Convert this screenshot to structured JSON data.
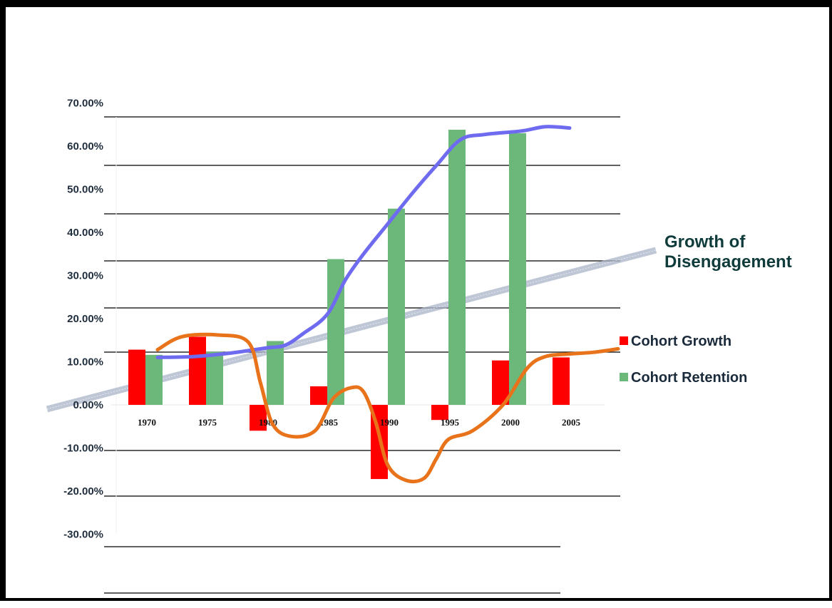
{
  "chart_data": {
    "type": "bar",
    "categories": [
      "1970",
      "1975",
      "1980",
      "1985",
      "1990",
      "1995",
      "2000",
      "2005"
    ],
    "series": [
      {
        "name": "Cohort Growth",
        "color": "#ff0000",
        "values": [
          12.8,
          15.8,
          -6.0,
          4.3,
          -17.2,
          -3.5,
          10.3,
          11.0
        ]
      },
      {
        "name": "Cohort Retention",
        "color": "#6cb87a",
        "values": [
          11.6,
          12.3,
          14.8,
          33.8,
          45.5,
          63.8,
          63.0,
          null
        ]
      }
    ],
    "ylim": [
      -30,
      70
    ],
    "yticks": [
      "70.00%",
      "60.00%",
      "50.00%",
      "40.00%",
      "30.00%",
      "20.00%",
      "10.00%",
      "0.00%",
      "-10.00%",
      "-20.00%",
      "-30.00%"
    ],
    "ytick_values": [
      70,
      60,
      50,
      40,
      30,
      20,
      10,
      0,
      -10,
      -20,
      -30
    ],
    "legend": [
      "Cohort Growth",
      "Cohort Retention"
    ],
    "legend_position": "right",
    "annotation": {
      "text_line1": "Growth of",
      "text_line2": "Disengagement",
      "trend_color": "#a9b4c8"
    },
    "hand_drawn_lines": [
      {
        "label": "retention-trace",
        "color": "#6f6bf0",
        "points": [
          [
            1971,
            11.0
          ],
          [
            1974,
            11.2
          ],
          [
            1977,
            12.0
          ],
          [
            1980,
            13.2
          ],
          [
            1981.5,
            13.8
          ],
          [
            1983,
            16.5
          ],
          [
            1985,
            21.0
          ],
          [
            1986.5,
            29.0
          ],
          [
            1988,
            35.0
          ],
          [
            1990,
            42.0
          ],
          [
            1992,
            49.0
          ],
          [
            1994,
            55.5
          ],
          [
            1996,
            61.5
          ],
          [
            1998,
            62.7
          ],
          [
            2001,
            63.5
          ],
          [
            2003,
            64.5
          ],
          [
            2005,
            64.2
          ]
        ]
      },
      {
        "label": "growth-trace",
        "color": "#e8731a",
        "points": [
          [
            1971,
            12.8
          ],
          [
            1973,
            15.8
          ],
          [
            1976,
            16.2
          ],
          [
            1978.5,
            14.5
          ],
          [
            1979.5,
            5.0
          ],
          [
            1980.5,
            -4.5
          ],
          [
            1982,
            -7.3
          ],
          [
            1984,
            -6.0
          ],
          [
            1985.5,
            1.5
          ],
          [
            1987,
            4.0
          ],
          [
            1988,
            3.0
          ],
          [
            1989,
            -4.0
          ],
          [
            1990,
            -14.0
          ],
          [
            1991.5,
            -17.5
          ],
          [
            1993,
            -17.0
          ],
          [
            1994,
            -12.5
          ],
          [
            1995,
            -8.0
          ],
          [
            1997,
            -6.0
          ],
          [
            1999.5,
            0.0
          ],
          [
            2001.5,
            8.5
          ],
          [
            2003,
            11.2
          ],
          [
            2005,
            11.8
          ],
          [
            2007,
            12.2
          ],
          [
            2009,
            13.0
          ]
        ]
      }
    ]
  }
}
